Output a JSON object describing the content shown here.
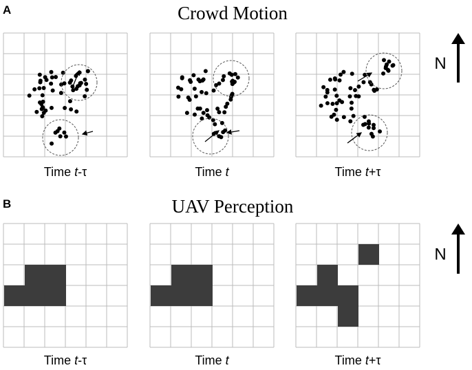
{
  "panel_a": {
    "letter": "A",
    "title": "Crowd Motion",
    "labels": [
      {
        "prefix": "Time",
        "var": "t",
        "suffix": "-τ"
      },
      {
        "prefix": "Time",
        "var": "t"
      },
      {
        "prefix": "Time",
        "var": "t",
        "suffix": "+τ"
      }
    ]
  },
  "panel_b": {
    "letter": "B",
    "title": "UAV Perception",
    "labels": [
      {
        "prefix": "Time",
        "var": "t",
        "suffix": "-τ"
      },
      {
        "prefix": "Time",
        "var": "t"
      },
      {
        "prefix": "Time",
        "var": "t",
        "suffix": "+τ"
      }
    ]
  },
  "north": "N"
}
